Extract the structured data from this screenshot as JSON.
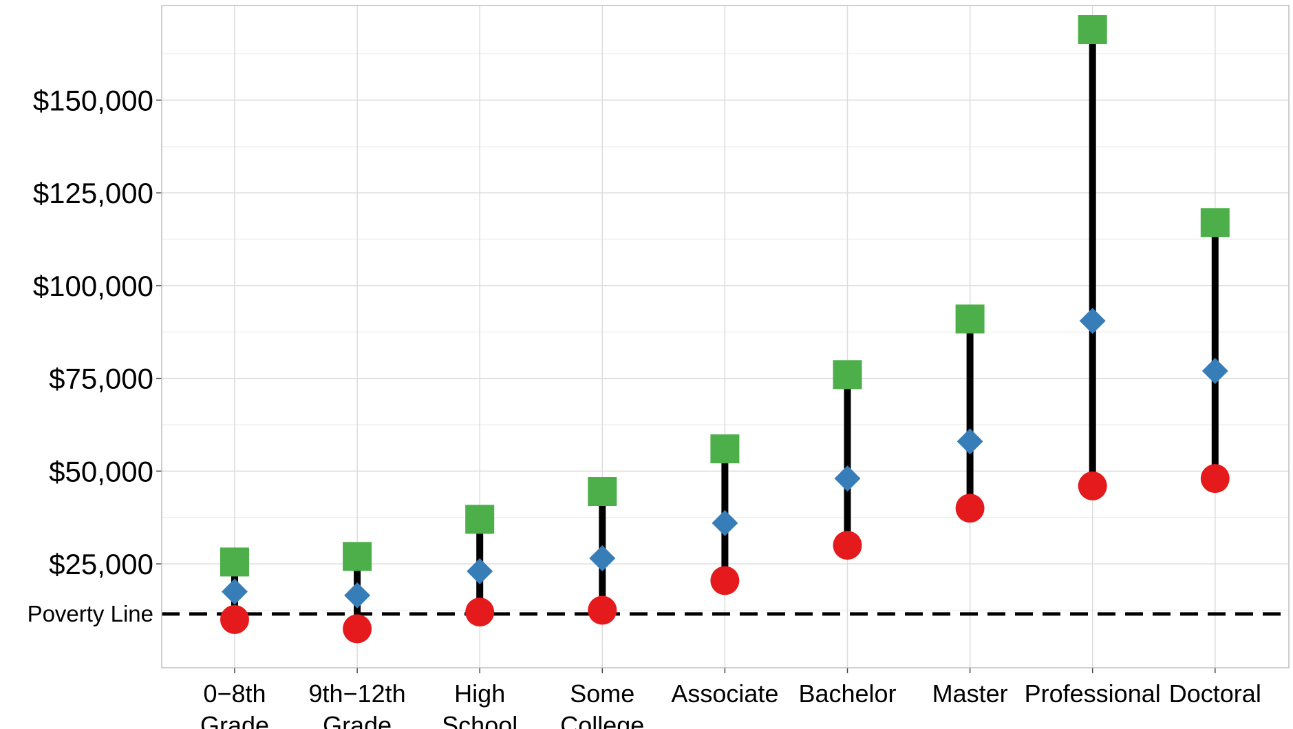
{
  "chart_data": {
    "type": "scatter",
    "categories": [
      [
        "0−8th",
        "Grade"
      ],
      [
        "9th−12th",
        "Grade"
      ],
      [
        "High",
        "School"
      ],
      [
        "Some",
        "College"
      ],
      [
        "Associate"
      ],
      [
        "Bachelor"
      ],
      [
        "Master"
      ],
      [
        "Professional"
      ],
      [
        "Doctoral"
      ]
    ],
    "series": [
      {
        "marker": "square",
        "color": "#4daf4a",
        "values": [
          25500,
          27000,
          37000,
          44500,
          56000,
          76000,
          91000,
          169000,
          117000
        ]
      },
      {
        "marker": "diamond",
        "color": "#377eb8",
        "values": [
          17500,
          16500,
          23000,
          26500,
          36000,
          48000,
          58000,
          90500,
          77000
        ]
      },
      {
        "marker": "circle",
        "color": "#e41a1c",
        "values": [
          10000,
          7500,
          12000,
          12500,
          20500,
          30000,
          40000,
          46000,
          48000
        ]
      }
    ],
    "range_line_color": "#000000",
    "ylim": [
      -3000,
      175500
    ],
    "yticks": [
      25000,
      50000,
      75000,
      100000,
      125000,
      150000
    ],
    "ytick_labels": [
      "$25,000",
      "$50,000",
      "$75,000",
      "$100,000",
      "$125,000",
      "$150,000"
    ],
    "reference_line": {
      "value": 11500,
      "label": "Poverty Line",
      "style": "dashed"
    },
    "grid": true,
    "legend": "none"
  }
}
